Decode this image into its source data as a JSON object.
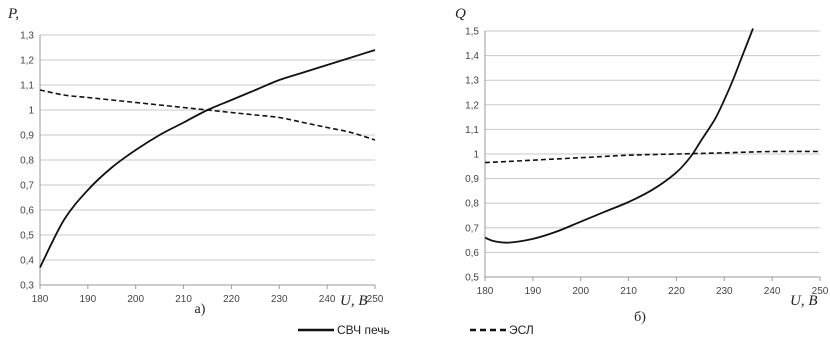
{
  "chart_data": [
    {
      "type": "line",
      "panel_label": "а)",
      "ylabel": "P,",
      "xlabel": "U, B",
      "xlim": [
        180,
        250
      ],
      "ylim": [
        0.3,
        1.3
      ],
      "x_ticks": [
        180,
        190,
        200,
        210,
        220,
        230,
        240,
        250
      ],
      "y_ticks": [
        "0,3",
        "0,4",
        "0,5",
        "0,6",
        "0,7",
        "0,8",
        "0,9",
        "1",
        "1,1",
        "1,2",
        "1,3"
      ],
      "grid": true,
      "series": [
        {
          "name": "СВЧ печь",
          "style": "solid",
          "x": [
            180,
            185,
            190,
            195,
            200,
            205,
            210,
            215,
            220,
            225,
            230,
            235,
            240,
            245,
            250
          ],
          "y": [
            0.37,
            0.56,
            0.68,
            0.77,
            0.84,
            0.9,
            0.95,
            1.0,
            1.04,
            1.08,
            1.12,
            1.15,
            1.18,
            1.21,
            1.24
          ]
        },
        {
          "name": "ЭСЛ",
          "style": "dashed",
          "x": [
            180,
            185,
            190,
            195,
            200,
            205,
            210,
            215,
            220,
            225,
            230,
            235,
            240,
            245,
            250
          ],
          "y": [
            1.08,
            1.06,
            1.05,
            1.04,
            1.03,
            1.02,
            1.01,
            1.0,
            0.99,
            0.98,
            0.97,
            0.95,
            0.93,
            0.91,
            0.88
          ]
        }
      ]
    },
    {
      "type": "line",
      "panel_label": "б)",
      "ylabel": "Q",
      "xlabel": "U, B",
      "xlim": [
        180,
        250
      ],
      "ylim": [
        0.5,
        1.5
      ],
      "x_ticks": [
        180,
        190,
        200,
        210,
        220,
        230,
        240,
        250
      ],
      "y_ticks": [
        "0,5",
        "0,6",
        "0,7",
        "0,8",
        "0,9",
        "1",
        "1,1",
        "1,2",
        "1,3",
        "1,4",
        "1,5"
      ],
      "grid": true,
      "series": [
        {
          "name": "СВЧ печь",
          "style": "solid",
          "x": [
            180,
            182,
            185,
            190,
            195,
            200,
            205,
            210,
            215,
            220,
            223,
            225,
            228,
            230,
            232,
            234,
            236
          ],
          "y": [
            0.66,
            0.645,
            0.64,
            0.655,
            0.685,
            0.725,
            0.765,
            0.805,
            0.855,
            0.925,
            0.99,
            1.05,
            1.14,
            1.22,
            1.31,
            1.41,
            1.51
          ]
        },
        {
          "name": "ЭСЛ",
          "style": "dashed",
          "x": [
            180,
            190,
            200,
            210,
            220,
            230,
            240,
            250
          ],
          "y": [
            0.965,
            0.975,
            0.985,
            0.995,
            1.0,
            1.005,
            1.01,
            1.01
          ]
        }
      ]
    }
  ],
  "legend": {
    "placement": "bottom",
    "items": [
      {
        "label": "СВЧ печь",
        "style": "solid"
      },
      {
        "label": "ЭСЛ",
        "style": "dashed"
      }
    ]
  }
}
